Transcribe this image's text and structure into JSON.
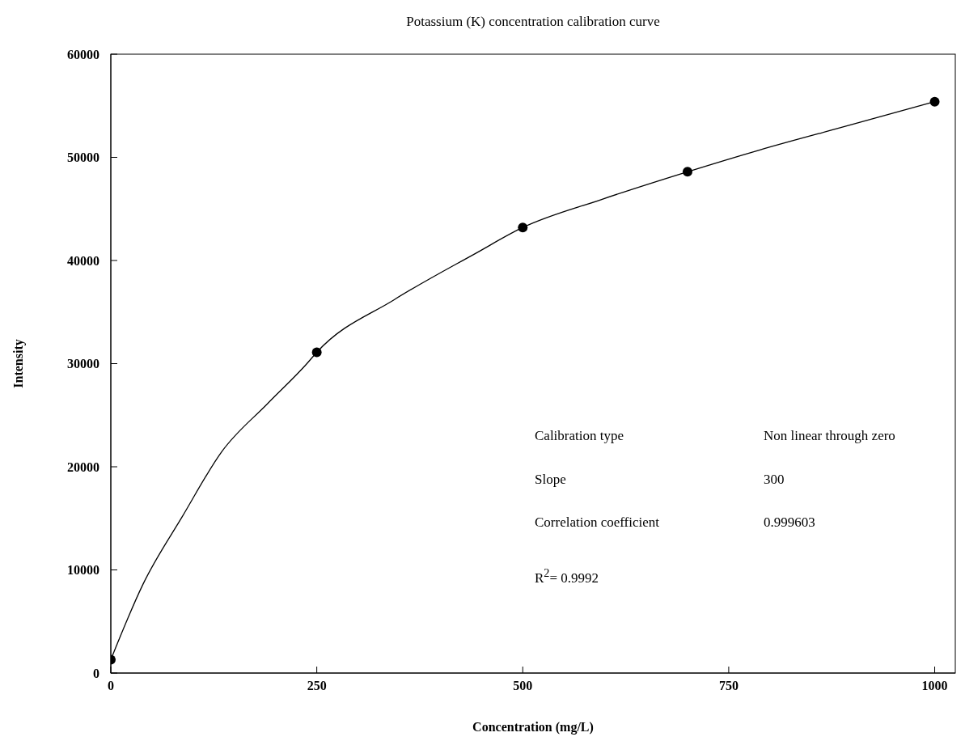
{
  "chart_data": {
    "type": "scatter",
    "title": "Potassium (K) concentration calibration curve",
    "xlabel": "Concentration (mg/L)",
    "ylabel": "Intensity",
    "xlim": [
      0,
      1025
    ],
    "xticks": [
      0,
      250,
      500,
      750,
      1000
    ],
    "ylim": [
      0,
      60000
    ],
    "yticks": [
      0,
      10000,
      20000,
      30000,
      40000,
      50000,
      60000
    ],
    "grid": false,
    "legend": false,
    "marker": "circle",
    "series": [
      {
        "color": "#000000",
        "x": [
          0,
          250,
          500,
          700,
          1000
        ],
        "values": [
          1300,
          31100,
          43200,
          48600,
          55400
        ]
      },
      {
        "type": "line",
        "color": "#000000",
        "marker": "none",
        "line_style": "solid",
        "x": [
          0,
          39,
          87,
          135,
          190,
          238,
          250,
          344,
          443,
          500,
          595,
          700,
          787,
          896,
          1000
        ],
        "values": [
          1300,
          8600,
          15200,
          21500,
          26100,
          30000,
          31100,
          36200,
          40700,
          43200,
          45900,
          48600,
          50700,
          53100,
          55400
        ]
      }
    ],
    "annotations": [
      "Calibration type",
      "Non linear through zero",
      "Slope",
      "300",
      "Correlation coefficient",
      "0.999603",
      "R$^{2}$= 0.9992"
    ]
  }
}
